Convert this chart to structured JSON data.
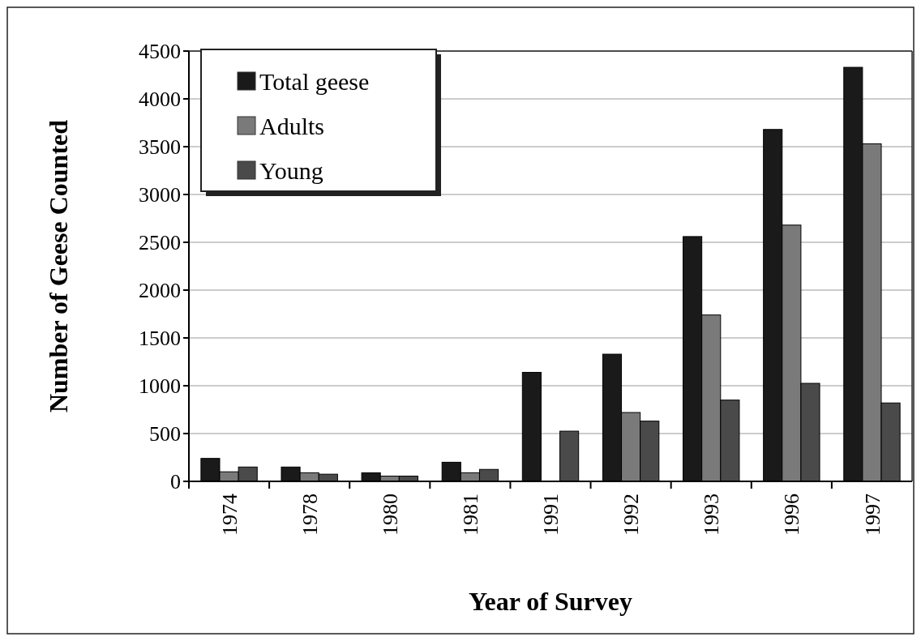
{
  "chart_data": {
    "type": "bar",
    "xlabel": "Year of Survey",
    "ylabel": "Number of Geese Counted",
    "categories": [
      "1974",
      "1978",
      "1980",
      "1981",
      "1991",
      "1992",
      "1993",
      "1996",
      "1997"
    ],
    "series": [
      {
        "name": "Total geese",
        "color": "#1a1a1a",
        "values": [
          240,
          150,
          90,
          200,
          1140,
          1330,
          2560,
          3680,
          4330
        ]
      },
      {
        "name": "Adults",
        "color": "#7a7a7a",
        "values": [
          100,
          90,
          55,
          90,
          null,
          720,
          1740,
          2680,
          3530
        ]
      },
      {
        "name": "Young",
        "color": "#4a4a4a",
        "values": [
          150,
          75,
          55,
          125,
          525,
          630,
          850,
          1025,
          820
        ]
      }
    ],
    "ylim": [
      0,
      4500
    ],
    "yticks": [
      0,
      500,
      1000,
      1500,
      2000,
      2500,
      3000,
      3500,
      4000,
      4500
    ],
    "grid": "y",
    "legend": "top left"
  }
}
